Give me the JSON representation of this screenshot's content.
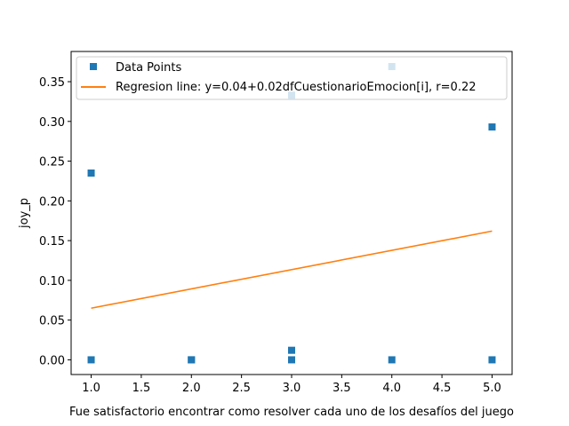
{
  "chart_data": {
    "type": "scatter",
    "xlabel": "Fue satisfactorio encontrar como resolver cada uno de los desafíos del juego",
    "ylabel": "joy_p",
    "xlim": [
      0.8,
      5.2
    ],
    "ylim": [
      -0.0185,
      0.388
    ],
    "xticks": [
      "1.0",
      "1.5",
      "2.0",
      "2.5",
      "3.0",
      "3.5",
      "4.0",
      "4.5",
      "5.0"
    ],
    "yticks": [
      "0.00",
      "0.05",
      "0.10",
      "0.15",
      "0.20",
      "0.25",
      "0.30",
      "0.35"
    ],
    "grid": false,
    "legend_position": "top-left",
    "series": [
      {
        "name": "Data Points",
        "kind": "scatter",
        "marker": "square",
        "color": "#1f77b4",
        "points": [
          {
            "x": 1,
            "y": 0.235
          },
          {
            "x": 1,
            "y": 0.0
          },
          {
            "x": 2,
            "y": 0.0
          },
          {
            "x": 2,
            "y": 0.0
          },
          {
            "x": 3,
            "y": 0.333
          },
          {
            "x": 3,
            "y": 0.012
          },
          {
            "x": 3,
            "y": 0.0
          },
          {
            "x": 4,
            "y": 0.369
          },
          {
            "x": 4,
            "y": 0.0
          },
          {
            "x": 5,
            "y": 0.293
          },
          {
            "x": 5,
            "y": 0.0
          }
        ]
      },
      {
        "name": "Regresion line: y=0.04+0.02dfCuestionarioEmocion[i], r=0.22",
        "kind": "line",
        "color": "#ff7f0e",
        "points": [
          {
            "x": 1,
            "y": 0.065
          },
          {
            "x": 5,
            "y": 0.162
          }
        ]
      }
    ]
  }
}
